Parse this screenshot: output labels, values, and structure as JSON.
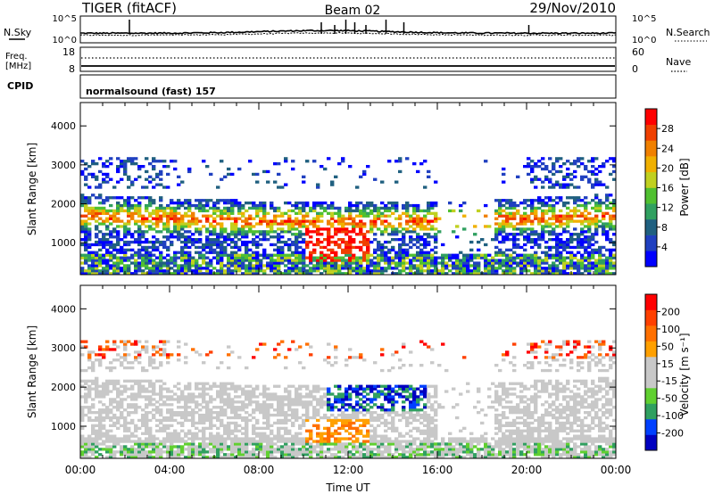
{
  "header": {
    "title": "TIGER (fitACF)",
    "beam": "Beam 02",
    "date": "29/Nov/2010"
  },
  "summary_panels": {
    "nsky": {
      "label": "N.Sky",
      "scale_top": "10^5",
      "scale_bottom": "10^0"
    },
    "nsearch": {
      "label": "N.Search",
      "scale_top": "10^5",
      "scale_bottom": "10^0"
    },
    "freq": {
      "label_line1": "Freq.",
      "label_line2": "[MHz]",
      "scale_top": "18",
      "scale_bottom": "8"
    },
    "nave": {
      "label": "Nave",
      "scale_top": "60",
      "scale_bottom": "0"
    },
    "cpid": {
      "label": "CPID",
      "value": "normalsound (fast) 157"
    }
  },
  "chart_data": [
    {
      "type": "heatmap",
      "xlabel": "",
      "ylabel": "Slant Range [km]",
      "x_range_hours": [
        0,
        24
      ],
      "ylim": [
        180,
        4600
      ],
      "y_ticks": [
        "1000",
        "2000",
        "3000",
        "4000"
      ],
      "colorbar": {
        "label": "Power [dB]",
        "ticks": [
          "4",
          "8",
          "12",
          "16",
          "20",
          "24",
          "28"
        ],
        "colors": [
          "#0000ff",
          "#2040c0",
          "#206080",
          "#30a060",
          "#50c030",
          "#c0d020",
          "#f0b000",
          "#f08000",
          "#f04000",
          "#ff0000"
        ]
      }
    },
    {
      "type": "heatmap",
      "xlabel": "Time UT",
      "ylabel": "Slant Range [km]",
      "x_range_hours": [
        0,
        24
      ],
      "x_ticks": [
        "00:00",
        "04:00",
        "08:00",
        "12:00",
        "16:00",
        "20:00",
        "00:00"
      ],
      "ylim": [
        180,
        4600
      ],
      "y_ticks": [
        "1000",
        "2000",
        "3000",
        "4000"
      ],
      "colorbar": {
        "label": "Velocity [m s⁻¹]",
        "ticks": [
          "200",
          "100",
          "50",
          "15",
          "-15",
          "-50",
          "-100",
          "-200"
        ],
        "colors": [
          "#0000c0",
          "#0040ff",
          "#30a060",
          "#60d030",
          "#c8c8c8",
          "#c8c8c8",
          "#ffa000",
          "#ff7000",
          "#ff4000",
          "#ff0000"
        ]
      }
    }
  ]
}
